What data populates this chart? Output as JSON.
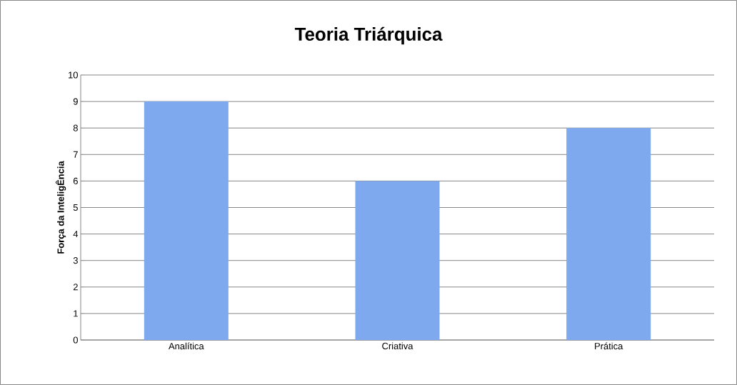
{
  "chart_data": {
    "type": "bar",
    "title": "Teoria Triárquica",
    "ylabel": "Força da InteligÊncia",
    "categories": [
      "Analítica",
      "Criativa",
      "Prática"
    ],
    "values": [
      9,
      6,
      8
    ],
    "color": "#7fa9ee",
    "ylim": [
      0,
      10
    ],
    "yticks": [
      0,
      1,
      2,
      3,
      4,
      5,
      6,
      7,
      8,
      9,
      10
    ],
    "grid": "y"
  }
}
